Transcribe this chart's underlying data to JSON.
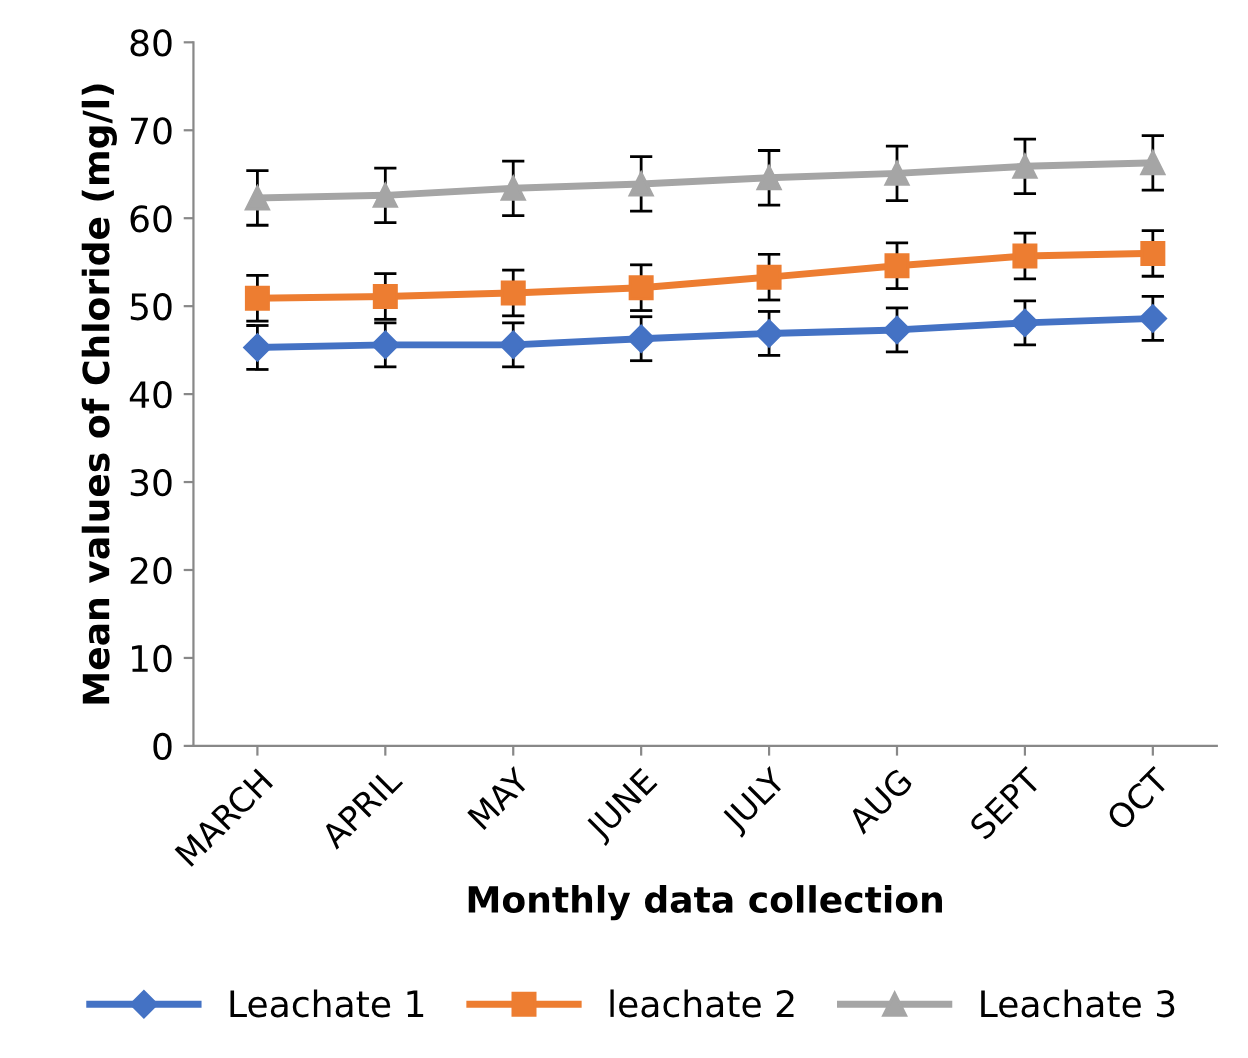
{
  "chart_data": {
    "type": "line",
    "xlabel": "Monthly data collection",
    "ylabel": "Mean values of Chloride (mg/l)",
    "categories": [
      "MARCH",
      "APRIL",
      "MAY",
      "JUNE",
      "JULY",
      "AUG",
      "SEPT",
      "OCT"
    ],
    "series": [
      {
        "name": "Leachate 1",
        "color": "#4472c4",
        "marker": "diamond",
        "values": [
          45.3,
          45.6,
          45.6,
          46.3,
          46.9,
          47.3,
          48.1,
          48.6
        ],
        "errors": [
          2.5,
          2.5,
          2.5,
          2.5,
          2.5,
          2.5,
          2.5,
          2.5
        ]
      },
      {
        "name": "leachate 2",
        "color": "#ed7d31",
        "marker": "square",
        "values": [
          50.9,
          51.1,
          51.5,
          52.1,
          53.3,
          54.6,
          55.7,
          56.0
        ],
        "errors": [
          2.6,
          2.6,
          2.6,
          2.6,
          2.6,
          2.6,
          2.6,
          2.6
        ]
      },
      {
        "name": "Leachate 3",
        "color": "#a5a5a5",
        "marker": "triangle",
        "values": [
          62.3,
          62.6,
          63.4,
          63.9,
          64.6,
          65.1,
          65.9,
          66.3
        ],
        "errors": [
          3.1,
          3.1,
          3.1,
          3.1,
          3.1,
          3.1,
          3.1,
          3.1
        ]
      }
    ],
    "ylim": [
      0,
      80
    ],
    "yticks": [
      0,
      10,
      20,
      30,
      40,
      50,
      60,
      70,
      80
    ],
    "grid": false,
    "legend": "bottom",
    "line_style": "solid"
  }
}
